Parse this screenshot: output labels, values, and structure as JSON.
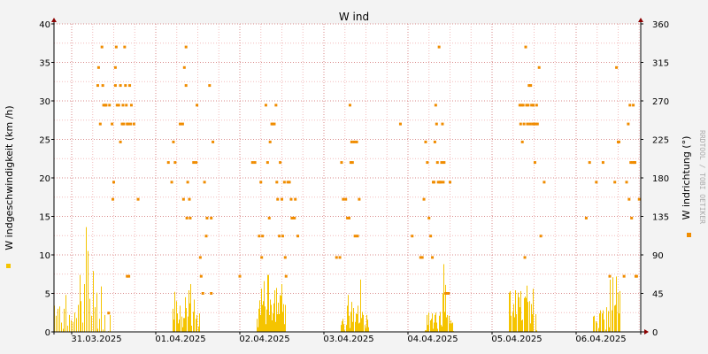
{
  "chart_data": {
    "type": "line",
    "title": "W ind",
    "ylabel_left": "W indgeschwindigkeit (km /h)",
    "ylabel_right": "W indrichtung (°)",
    "watermark": "RRDTOOL / TOBI OETIKER",
    "x_tick_labels": [
      "31.03.2025",
      "01.04.2025",
      "02.04.2025",
      "03.04.2025",
      "04.04.2025",
      "05.04.2025",
      "06.04.2025"
    ],
    "x_range": [
      "30.03.2025 15:00",
      "06.04.2025 23:00"
    ],
    "y_left_ticks": [
      "0",
      "5",
      "10",
      "15",
      "20",
      "25",
      "30",
      "35",
      "40"
    ],
    "y_left_range": [
      0,
      40
    ],
    "y_right_ticks": [
      "0",
      "45",
      "90",
      "135",
      "180",
      "225",
      "270",
      "315",
      "360"
    ],
    "y_right_range": [
      0,
      360
    ],
    "grid": true,
    "colors": {
      "speed": "#f5c400",
      "direction": "#f08c00",
      "grid_minor": "#f2bcbc",
      "grid_major": "#d98a8a",
      "axis": "#000000",
      "arrow": "#8b0000"
    },
    "series": [
      {
        "name": "",
        "axis": "left",
        "style": "impulse",
        "day_profiles": [
          [
            3.4,
            2.1,
            3.0,
            3.3,
            1.2,
            0.4,
            3.0,
            4.8,
            0.8,
            2.2,
            1.5,
            1.3,
            2.5,
            1.8,
            3.5,
            7.4,
            4.0,
            1.2,
            6.2,
            13.6,
            10.5,
            4.3,
            2.1,
            7.9,
            3.2,
            5.1,
            0.4,
            1.7,
            5.9,
            0.3,
            2.2,
            0.0,
            0.1,
            2.2,
            0.0,
            0.0,
            0.0,
            0.0
          ],
          [
            3.0,
            1.6,
            5.2,
            4.0,
            2.4,
            1.1,
            1.6,
            3.4,
            2.0,
            0.6,
            1.8,
            1.8,
            4.5,
            3.1,
            2.0,
            5.4,
            3.7,
            6.2,
            0.8,
            2.6,
            4.2,
            0.0,
            1.7,
            2.2,
            0.7,
            2.4,
            0.0,
            0.0
          ],
          [
            1.7,
            0.6,
            3.0,
            0.4,
            4.1,
            2.2,
            5.6,
            3.5,
            1.9,
            4.0,
            6.6,
            3.3,
            1.0,
            2.9,
            7.4,
            5.6,
            7.4,
            2.2,
            4.2,
            3.5,
            0.8,
            1.5,
            2.4,
            3.7,
            5.4,
            1.3,
            5.7,
            5.2,
            2.3,
            3.8,
            2.3,
            4.8,
            2.5,
            4.7,
            6.2,
            2.6,
            3.6,
            1.0,
            3.5,
            1.4
          ],
          [
            0.9,
            1.4,
            1.7,
            1.0,
            0.2,
            0.9,
            3.4,
            4.8,
            2.1,
            0.5,
            2.6,
            3.9,
            1.3,
            3.1,
            1.3,
            2.4,
            2.3,
            3.4,
            1.1,
            1.2,
            6.8,
            1.8,
            2.6,
            2.2,
            0.9,
            0.5,
            2.2,
            1.6,
            0.6,
            0.0
          ],
          [
            0.2,
            0.2,
            2.2,
            0.9,
            2.5,
            1.5,
            1.7,
            2.4,
            0.4,
            1.2,
            2.2,
            2.5,
            1.2,
            0.4,
            2.1,
            2.6,
            0.9,
            0.7,
            5.0,
            8.8,
            2.6,
            6.1,
            1.9,
            2.2,
            2.1,
            1.1,
            1.5,
            1.1,
            1.2,
            0.1
          ],
          [
            5.1,
            5.3,
            2.1,
            2.6,
            3.6,
            1.9,
            5.4,
            2.3,
            5.1,
            4.5,
            3.2,
            5.3,
            1.5,
            1.6,
            4.4,
            4.6,
            4.4,
            6.0,
            3.9,
            4.0,
            1.1,
            3.6,
            2.3,
            5.6,
            0.0,
            2.3,
            0.2,
            0.0
          ],
          [
            2.0,
            2.1,
            1.4,
            1.2,
            0.5,
            2.4,
            2.8,
            2.4,
            2.8,
            1.6,
            0.3,
            3.2,
            2.7,
            0.6,
            6.8,
            2.8,
            7.1,
            3.4,
            3.5,
            7.2,
            5.1,
            2.4,
            5.3,
            0.0
          ]
        ]
      },
      {
        "name": "",
        "axis": "right",
        "style": "points",
        "days": [
          [
            [
              0.57,
              288
            ],
            [
              0.58,
              309
            ],
            [
              0.6,
              243
            ],
            [
              0.62,
              333
            ],
            [
              0.63,
              288
            ],
            [
              0.64,
              265
            ],
            [
              0.66,
              265
            ],
            [
              0.67,
              265
            ],
            [
              0.7,
              22
            ],
            [
              0.71,
              265
            ],
            [
              0.74,
              243
            ],
            [
              0.75,
              155
            ],
            [
              0.76,
              175
            ],
            [
              0.78,
              288
            ],
            [
              0.78,
              309
            ],
            [
              0.79,
              333
            ],
            [
              0.8,
              265
            ],
            [
              0.82,
              265
            ],
            [
              0.84,
              288
            ],
            [
              0.84,
              222
            ],
            [
              0.86,
              243
            ],
            [
              0.87,
              265
            ],
            [
              0.88,
              243
            ],
            [
              0.89,
              333
            ],
            [
              0.9,
              288
            ],
            [
              0.91,
              265
            ],
            [
              0.92,
              243
            ],
            [
              0.92,
              65
            ],
            [
              0.93,
              243
            ],
            [
              0.94,
              65
            ],
            [
              0.95,
              288
            ],
            [
              0.96,
              243
            ],
            [
              0.97,
              265
            ],
            [
              1.0,
              243
            ],
            [
              1.05,
              155
            ]
          ],
          [
            [
              0.2,
              198
            ],
            [
              0.24,
              175
            ],
            [
              0.26,
              222
            ],
            [
              0.28,
              198
            ],
            [
              0.34,
              243
            ],
            [
              0.37,
              243
            ],
            [
              0.38,
              155
            ],
            [
              0.39,
              309
            ],
            [
              0.41,
              288
            ],
            [
              0.41,
              333
            ],
            [
              0.42,
              133
            ],
            [
              0.43,
              175
            ],
            [
              0.45,
              155
            ],
            [
              0.46,
              133
            ],
            [
              0.5,
              198
            ],
            [
              0.53,
              198
            ],
            [
              0.54,
              265
            ],
            [
              0.58,
              87
            ],
            [
              0.59,
              65
            ],
            [
              0.61,
              45
            ],
            [
              0.63,
              175
            ],
            [
              0.65,
              112
            ],
            [
              0.66,
              133
            ],
            [
              0.69,
              288
            ],
            [
              0.71,
              133
            ],
            [
              0.71,
              45
            ],
            [
              0.73,
              222
            ]
          ],
          [
            [
              0.05,
              65
            ],
            [
              0.2,
              198
            ],
            [
              0.23,
              198
            ],
            [
              0.28,
              112
            ],
            [
              0.3,
              175
            ],
            [
              0.31,
              87
            ],
            [
              0.32,
              112
            ],
            [
              0.36,
              265
            ],
            [
              0.38,
              198
            ],
            [
              0.4,
              133
            ],
            [
              0.41,
              222
            ],
            [
              0.43,
              243
            ],
            [
              0.44,
              243
            ],
            [
              0.46,
              243
            ],
            [
              0.48,
              265
            ],
            [
              0.49,
              175
            ],
            [
              0.5,
              155
            ],
            [
              0.52,
              112
            ],
            [
              0.53,
              198
            ],
            [
              0.55,
              155
            ],
            [
              0.56,
              112
            ],
            [
              0.58,
              175
            ],
            [
              0.59,
              87
            ],
            [
              0.6,
              65
            ],
            [
              0.62,
              175
            ],
            [
              0.64,
              175
            ],
            [
              0.66,
              155
            ],
            [
              0.67,
              133
            ],
            [
              0.68,
              133
            ],
            [
              0.7,
              133
            ],
            [
              0.71,
              155
            ],
            [
              0.74,
              112
            ]
          ],
          [
            [
              0.2,
              87
            ],
            [
              0.24,
              87
            ],
            [
              0.26,
              198
            ],
            [
              0.28,
              155
            ],
            [
              0.31,
              155
            ],
            [
              0.33,
              133
            ],
            [
              0.35,
              133
            ],
            [
              0.36,
              265
            ],
            [
              0.37,
              198
            ],
            [
              0.38,
              222
            ],
            [
              0.39,
              198
            ],
            [
              0.41,
              222
            ],
            [
              0.42,
              112
            ],
            [
              0.44,
              222
            ],
            [
              0.45,
              112
            ],
            [
              0.47,
              155
            ],
            [
              0.96,
              243
            ]
          ],
          [
            [
              0.1,
              112
            ],
            [
              0.2,
              87
            ],
            [
              0.22,
              87
            ],
            [
              0.24,
              155
            ],
            [
              0.26,
              222
            ],
            [
              0.28,
              198
            ],
            [
              0.3,
              133
            ],
            [
              0.32,
              112
            ],
            [
              0.34,
              87
            ],
            [
              0.35,
              175
            ],
            [
              0.36,
              175
            ],
            [
              0.37,
              222
            ],
            [
              0.38,
              265
            ],
            [
              0.39,
              243
            ],
            [
              0.4,
              198
            ],
            [
              0.41,
              175
            ],
            [
              0.42,
              333
            ],
            [
              0.43,
              175
            ],
            [
              0.44,
              175
            ],
            [
              0.45,
              198
            ],
            [
              0.46,
              243
            ],
            [
              0.47,
              175
            ],
            [
              0.48,
              198
            ],
            [
              0.5,
              45
            ],
            [
              0.53,
              45
            ],
            [
              0.55,
              175
            ]
          ],
          [
            [
              0.38,
              265
            ],
            [
              0.39,
              243
            ],
            [
              0.4,
              265
            ],
            [
              0.41,
              222
            ],
            [
              0.42,
              265
            ],
            [
              0.43,
              243
            ],
            [
              0.44,
              87
            ],
            [
              0.45,
              333
            ],
            [
              0.46,
              265
            ],
            [
              0.47,
              243
            ],
            [
              0.48,
              265
            ],
            [
              0.49,
              288
            ],
            [
              0.5,
              243
            ],
            [
              0.51,
              288
            ],
            [
              0.52,
              265
            ],
            [
              0.53,
              243
            ],
            [
              0.54,
              265
            ],
            [
              0.55,
              243
            ],
            [
              0.56,
              198
            ],
            [
              0.57,
              243
            ],
            [
              0.58,
              265
            ],
            [
              0.59,
              243
            ],
            [
              0.61,
              309
            ],
            [
              0.63,
              112
            ],
            [
              0.67,
              175
            ]
          ],
          [
            [
              0.17,
              133
            ],
            [
              0.21,
              198
            ],
            [
              0.29,
              175
            ],
            [
              0.37,
              198
            ],
            [
              0.45,
              65
            ],
            [
              0.51,
              175
            ],
            [
              0.53,
              309
            ],
            [
              0.55,
              222
            ],
            [
              0.56,
              222
            ],
            [
              0.62,
              65
            ],
            [
              0.65,
              175
            ],
            [
              0.67,
              243
            ],
            [
              0.68,
              155
            ],
            [
              0.69,
              265
            ],
            [
              0.7,
              198
            ],
            [
              0.71,
              133
            ],
            [
              0.72,
              198
            ],
            [
              0.73,
              265
            ],
            [
              0.74,
              198
            ],
            [
              0.75,
              198
            ],
            [
              0.76,
              65
            ],
            [
              0.77,
              65
            ],
            [
              0.8,
              155
            ],
            [
              0.85,
              65
            ]
          ]
        ]
      }
    ]
  }
}
